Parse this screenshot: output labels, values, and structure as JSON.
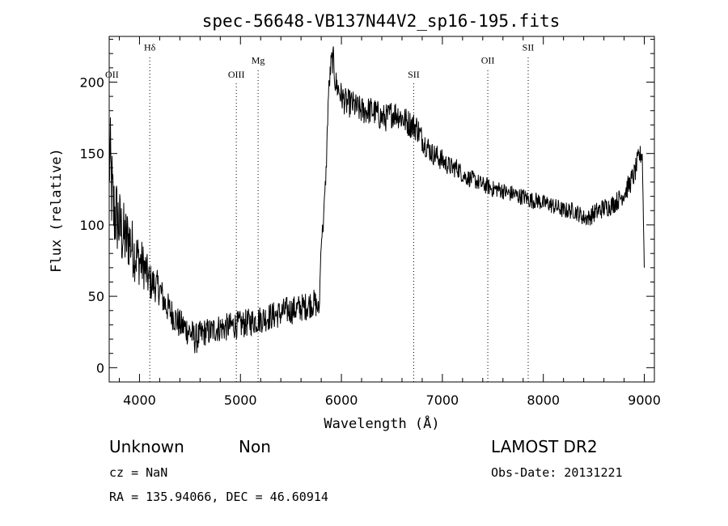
{
  "chart_data": {
    "type": "line",
    "title": "spec-56648-VB137N44V2_sp16-195.fits",
    "xlabel": "Wavelength (Å)",
    "ylabel": "Flux (relative)",
    "xlim": [
      3700,
      9100
    ],
    "ylim": [
      -10,
      232
    ],
    "x_ticks": [
      4000,
      5000,
      6000,
      7000,
      8000,
      9000
    ],
    "y_ticks": [
      0,
      50,
      100,
      150,
      200
    ],
    "x_tick_labels": [
      "4000",
      "5000",
      "6000",
      "7000",
      "8000",
      "9000"
    ],
    "y_tick_labels": [
      "0",
      "50",
      "100",
      "150",
      "200"
    ],
    "grid": false,
    "series": [
      {
        "name": "",
        "color": "#000000",
        "x": [
          3700,
          3740,
          3780,
          3820,
          3860,
          3900,
          3950,
          4000,
          4050,
          4100,
          4150,
          4200,
          4250,
          4300,
          4350,
          4400,
          4450,
          4500,
          4550,
          4600,
          4650,
          4700,
          4750,
          4800,
          4850,
          4900,
          4950,
          5000,
          5050,
          5100,
          5150,
          5200,
          5250,
          5300,
          5350,
          5400,
          5450,
          5500,
          5550,
          5600,
          5650,
          5700,
          5740,
          5780,
          5800,
          5820,
          5850,
          5870,
          5900,
          5920,
          5940,
          5970,
          6000,
          6050,
          6100,
          6150,
          6200,
          6250,
          6300,
          6350,
          6400,
          6450,
          6500,
          6550,
          6600,
          6650,
          6700,
          6750,
          6800,
          6850,
          6900,
          6950,
          7000,
          7050,
          7100,
          7150,
          7200,
          7250,
          7300,
          7350,
          7400,
          7450,
          7500,
          7550,
          7600,
          7650,
          7700,
          7750,
          7800,
          7850,
          7900,
          7950,
          8000,
          8050,
          8100,
          8150,
          8200,
          8250,
          8300,
          8350,
          8400,
          8450,
          8500,
          8550,
          8600,
          8650,
          8700,
          8750,
          8800,
          8850,
          8900,
          8950,
          8980,
          9000
        ],
        "values": [
          150,
          110,
          105,
          95,
          90,
          90,
          80,
          75,
          70,
          60,
          58,
          55,
          45,
          40,
          35,
          30,
          28,
          25,
          20,
          22,
          25,
          25,
          27,
          28,
          28,
          29,
          30,
          30,
          31,
          32,
          33,
          34,
          35,
          36,
          37,
          38,
          40,
          40,
          41,
          42,
          43,
          45,
          45,
          40,
          90,
          100,
          140,
          190,
          215,
          215,
          200,
          195,
          190,
          185,
          185,
          182,
          180,
          180,
          180,
          178,
          175,
          175,
          178,
          178,
          175,
          172,
          170,
          168,
          160,
          155,
          150,
          148,
          145,
          142,
          140,
          140,
          135,
          133,
          132,
          130,
          128,
          127,
          125,
          125,
          124,
          122,
          122,
          120,
          120,
          118,
          117,
          117,
          115,
          115,
          113,
          112,
          110,
          110,
          110,
          108,
          105,
          105,
          108,
          110,
          112,
          113,
          115,
          118,
          122,
          128,
          135,
          148,
          150,
          70
        ],
        "noise_amplitude": [
          40,
          32,
          28,
          26,
          24,
          22,
          20,
          18,
          16,
          14,
          12,
          12,
          11,
          11,
          11,
          11,
          11,
          11,
          11,
          11,
          10,
          10,
          10,
          10,
          10,
          10,
          10,
          10,
          10,
          10,
          10,
          10,
          10,
          10,
          10,
          10,
          10,
          10,
          10,
          10,
          10,
          10,
          10,
          6,
          6,
          6,
          6,
          8,
          8,
          10,
          10,
          10,
          10,
          10,
          10,
          10,
          10,
          10,
          10,
          10,
          10,
          10,
          10,
          10,
          10,
          10,
          10,
          10,
          9,
          9,
          8,
          8,
          8,
          7,
          7,
          7,
          6,
          6,
          6,
          6,
          6,
          6,
          6,
          6,
          6,
          6,
          6,
          6,
          6,
          6,
          6,
          6,
          6,
          6,
          6,
          6,
          6,
          6,
          6,
          6,
          6,
          6,
          7,
          7,
          7,
          7,
          7,
          7,
          7,
          8,
          8,
          8,
          6,
          0
        ]
      }
    ],
    "annotations": [
      {
        "label": "OII",
        "x": 3727,
        "y": 203,
        "line": false
      },
      {
        "label": "Hδ",
        "x": 4102,
        "y": 222,
        "line": true
      },
      {
        "label": "OIII",
        "x": 4959,
        "y": 203,
        "line": true
      },
      {
        "label": "Mg",
        "x": 5175,
        "y": 213,
        "line": true
      },
      {
        "label": "SII",
        "x": 6716,
        "y": 203,
        "line": true
      },
      {
        "label": "OII",
        "x": 7450,
        "y": 213,
        "line": true
      },
      {
        "label": "SII",
        "x": 7850,
        "y": 222,
        "line": true
      }
    ]
  },
  "footer": {
    "class_label": "Unknown",
    "subclass_label": "Non",
    "survey": "LAMOST DR2",
    "cz": "cz = NaN",
    "obs_date": "Obs-Date: 20131221",
    "coords": "RA = 135.94066, DEC =  46.60914"
  }
}
